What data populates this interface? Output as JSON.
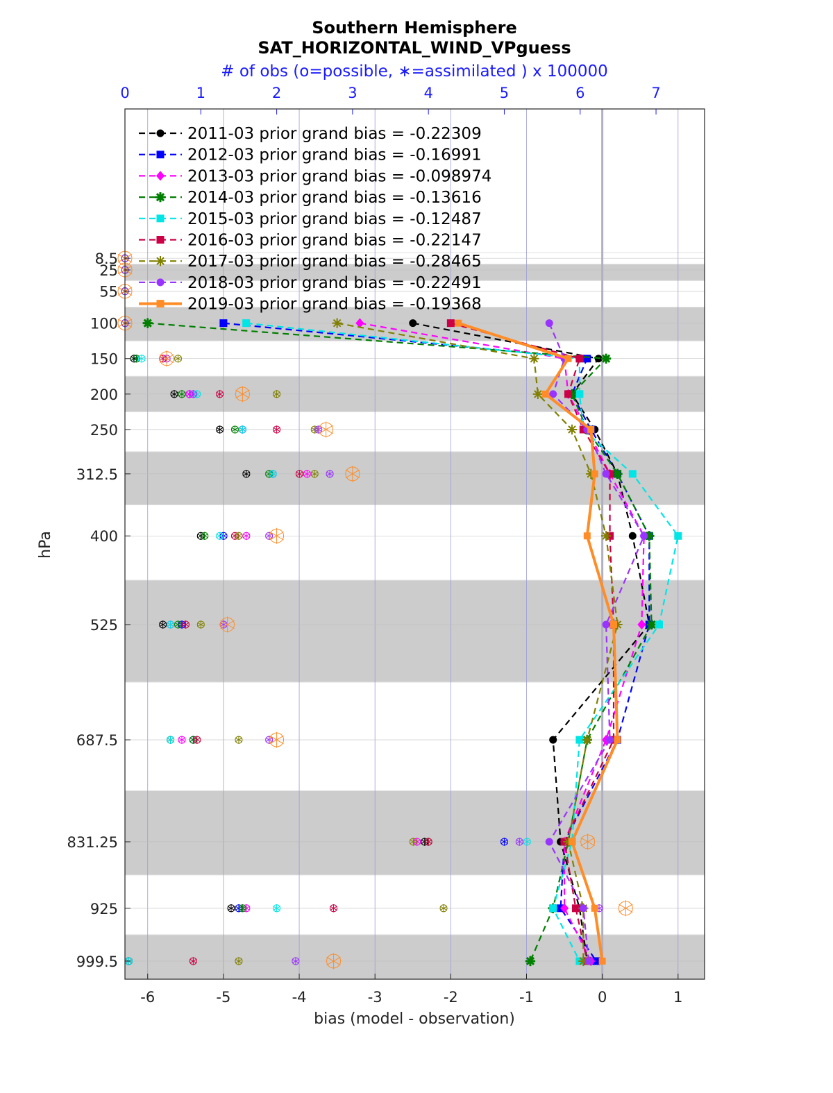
{
  "chart_data": {
    "type": "line",
    "title": "Southern Hemisphere",
    "subtitle": "SAT_HORIZONTAL_WIND_VPguess",
    "top_axis_label": "# of obs (o=possible, ∗=assimilated ) x 100000",
    "xlabel": "bias (model - observation)",
    "ylabel": "hPa",
    "xlim": [
      -6.3,
      1.35
    ],
    "top_xlim": [
      0,
      7.64
    ],
    "bottom_ticks": [
      -6,
      -5,
      -4,
      -3,
      -2,
      -1,
      0,
      1
    ],
    "bottom_tick_labels": [
      "-6",
      "-5",
      "-4",
      "-3",
      "-2",
      "-1",
      "0",
      "1"
    ],
    "top_ticks": [
      0,
      1,
      2,
      3,
      4,
      5,
      6,
      7
    ],
    "top_tick_labels": [
      "0",
      "1",
      "2",
      "3",
      "4",
      "5",
      "6",
      "7"
    ],
    "levels": [
      8.5,
      25,
      55,
      100,
      150,
      200,
      250,
      312.5,
      400,
      525,
      687.5,
      831.25,
      925,
      999.5
    ],
    "level_labels": [
      "8.5",
      "25",
      "55",
      "100",
      "150",
      "200",
      "250",
      "312.5",
      "400",
      "525",
      "687.5",
      "831.25",
      "925",
      "999.5"
    ],
    "legend_placement": "top-left",
    "grid": true,
    "zero_line_color": "#b0b0c0",
    "series": [
      {
        "name": "2011-03 prior grand bias = -0.22309",
        "color": "#000000",
        "marker": "circle",
        "style": "dashed",
        "bias": [
          null,
          null,
          null,
          -2.5,
          -0.05,
          -0.4,
          -0.1,
          0.2,
          0.4,
          0.62,
          -0.65,
          -0.55,
          -0.3,
          -0.2
        ],
        "obs_count": [
          0,
          0,
          0,
          0,
          0.12,
          0.65,
          1.25,
          1.6,
          1.0,
          0.5,
          0.6,
          3.95,
          1.4,
          0.05
        ]
      },
      {
        "name": "2012-03 prior grand bias = -0.16991",
        "color": "#0000ff",
        "marker": "square",
        "style": "dashed",
        "bias": [
          null,
          null,
          null,
          -5.0,
          -0.2,
          -0.4,
          -0.15,
          0.2,
          0.62,
          0.62,
          0.2,
          -0.5,
          -0.55,
          -0.08
        ],
        "obs_count": [
          0,
          0,
          0,
          0,
          0.15,
          0.85,
          1.55,
          1.95,
          1.3,
          0.75,
          0.9,
          5.0,
          1.5,
          0.05
        ]
      },
      {
        "name": "2013-03 prior grand bias = -0.098974",
        "color": "#ff00ff",
        "marker": "diamond",
        "style": "dashed",
        "bias": [
          null,
          null,
          null,
          -3.2,
          -0.5,
          -0.45,
          -0.2,
          0.1,
          0.55,
          0.52,
          0.05,
          -0.5,
          -0.5,
          -0.15
        ],
        "obs_count": [
          0,
          0,
          0,
          0,
          0.55,
          0.85,
          1.55,
          2.4,
          1.6,
          0.6,
          0.75,
          3.85,
          1.6,
          0.05
        ]
      },
      {
        "name": "2014-03 prior grand bias = -0.13616",
        "color": "#007f00",
        "marker": "star",
        "style": "dashed",
        "bias": [
          null,
          null,
          null,
          -6.0,
          0.05,
          -0.4,
          -0.2,
          0.2,
          0.62,
          0.65,
          -0.2,
          -0.45,
          -0.65,
          -0.95
        ],
        "obs_count": [
          0,
          0,
          0,
          0,
          0.15,
          0.75,
          1.45,
          1.9,
          1.05,
          0.7,
          0.9,
          4.0,
          1.55,
          0.05
        ]
      },
      {
        "name": "2015-03 prior grand bias = -0.12487",
        "color": "#00e5e5",
        "marker": "square",
        "style": "dashed",
        "bias": [
          null,
          null,
          null,
          -4.7,
          -0.3,
          -0.3,
          -0.25,
          0.4,
          1.0,
          0.75,
          -0.3,
          -0.4,
          -0.65,
          -0.3
        ],
        "obs_count": [
          0,
          0,
          0,
          0,
          0.22,
          0.95,
          1.55,
          1.95,
          1.25,
          0.6,
          0.6,
          5.3,
          2.0,
          0.05
        ]
      },
      {
        "name": "2016-03 prior grand bias = -0.22147",
        "color": "#cc0044",
        "marker": "square",
        "style": "dashed",
        "bias": [
          null,
          null,
          null,
          -2.0,
          -0.3,
          -0.45,
          -0.25,
          0.1,
          0.1,
          0.15,
          0.15,
          -0.5,
          -0.35,
          -0.2
        ],
        "obs_count": [
          0,
          0,
          0,
          0,
          0.5,
          1.25,
          2.0,
          2.3,
          1.45,
          0.8,
          0.95,
          4.0,
          2.75,
          0.9
        ]
      },
      {
        "name": "2017-03 prior grand bias = -0.28465",
        "color": "#808000",
        "marker": "asterisk",
        "style": "dashed",
        "bias": [
          null,
          null,
          null,
          -3.5,
          -0.9,
          -0.85,
          -0.4,
          -0.15,
          0.05,
          0.2,
          -0.2,
          -0.45,
          -0.25,
          -0.25
        ],
        "obs_count": [
          0,
          0,
          0,
          0,
          0.7,
          2.0,
          2.5,
          2.5,
          1.5,
          1.0,
          1.5,
          3.8,
          4.2,
          1.5
        ]
      },
      {
        "name": "2018-03 prior grand bias = -0.22491",
        "color": "#9933ff",
        "marker": "circle",
        "style": "dashed",
        "bias": [
          null,
          null,
          null,
          -0.7,
          -0.5,
          -0.65,
          -0.2,
          0.05,
          0.55,
          0.05,
          0.1,
          -0.7,
          -0.25,
          -0.18
        ],
        "obs_count": [
          0,
          0,
          0,
          0,
          0.55,
          0.9,
          2.55,
          2.7,
          1.9,
          1.3,
          1.9,
          5.2,
          6.25,
          2.25
        ]
      },
      {
        "name": "2019-03 prior grand bias = -0.19368",
        "color": "#ff8c26",
        "marker": "square",
        "style": "solid",
        "bias": [
          null,
          null,
          null,
          -1.9,
          -0.45,
          -0.75,
          -0.15,
          -0.1,
          -0.2,
          0.15,
          0.2,
          -0.4,
          -0.1,
          0.0
        ],
        "obs_count": [
          0,
          0,
          0,
          0,
          0.55,
          1.55,
          2.65,
          3.0,
          2.0,
          1.35,
          2.0,
          6.1,
          6.6,
          2.75
        ]
      }
    ]
  }
}
